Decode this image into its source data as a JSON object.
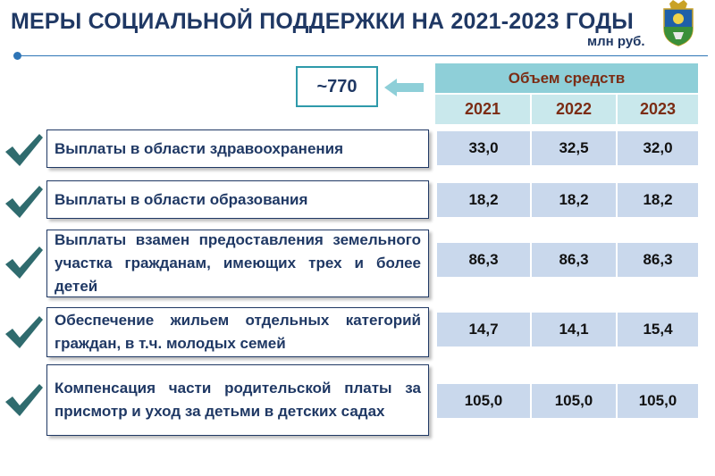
{
  "header": {
    "title": "МЕРЫ СОЦИАЛЬНОЙ ПОДДЕРЖКИ НА 2021-2023 ГОДЫ",
    "unit": "млн руб."
  },
  "total": {
    "value": "~770"
  },
  "table": {
    "header": "Объем средств",
    "years": [
      "2021",
      "2022",
      "2023"
    ],
    "rows": [
      {
        "label": "Выплаты в области здравоохранения",
        "values": [
          "33,0",
          "32,5",
          "32,0"
        ]
      },
      {
        "label": "Выплаты в области образования",
        "values": [
          "18,2",
          "18,2",
          "18,2"
        ]
      },
      {
        "label": "Выплаты взамен предоставления земельного участка гражданам, имеющих трех и более детей",
        "values": [
          "86,3",
          "86,3",
          "86,3"
        ]
      },
      {
        "label": "Обеспечение жильем отдельных категорий граждан, в т.ч. молодых семей",
        "values": [
          "14,7",
          "14,1",
          "15,4"
        ]
      },
      {
        "label": "Компенсация части родительской платы за присмотр и уход за детьми в детских садах",
        "values": [
          "105,0",
          "105,0",
          "105,0"
        ]
      }
    ]
  },
  "colors": {
    "title": "#1f3864",
    "accent_teal": "#8ecfd8",
    "accent_teal_light": "#c9e8ec",
    "cell_blue": "#c9d8ec",
    "header_text": "#7b2c14",
    "check_green": "#2f6b6e"
  },
  "icons": {
    "emblem": "coat-of-arms-icon",
    "check": "checkmark-icon",
    "arrow": "left-arrow-icon"
  }
}
